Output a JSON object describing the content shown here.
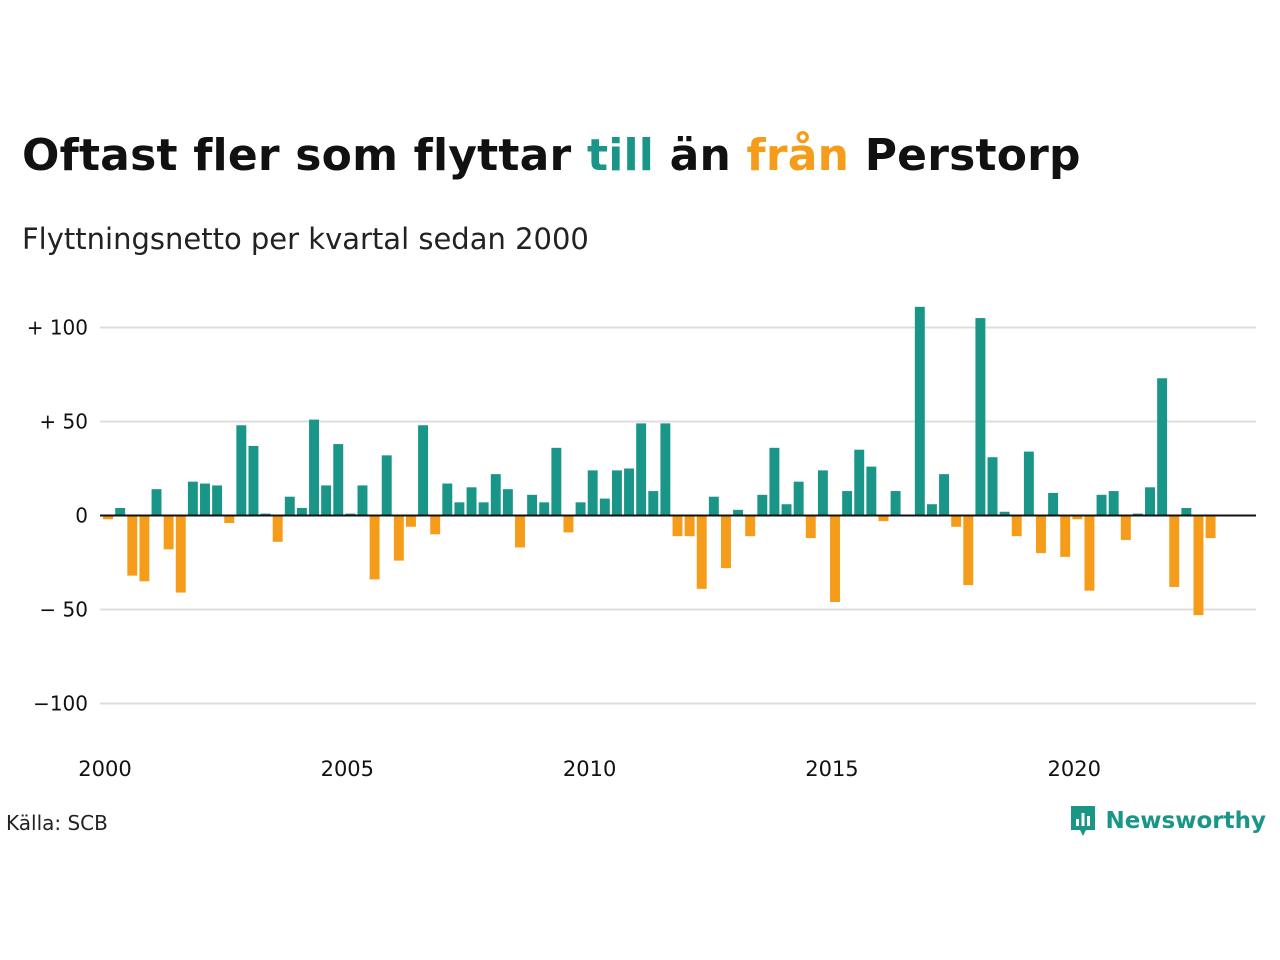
{
  "title": {
    "part1": "Oftast fler som flyttar ",
    "word_in": "till",
    "part2": " än ",
    "word_out": "från",
    "part3": " Perstorp"
  },
  "subtitle": "Flyttningsnetto per kvartal sedan 2000",
  "source": "Källa: SCB",
  "brand": {
    "name": "Newsworthy",
    "icon": "newsworthy-logo-icon"
  },
  "colors": {
    "positive": "#1a9688",
    "negative": "#f59c1a",
    "grid": "#dddddd",
    "axis": "#111111"
  },
  "chart_data": {
    "type": "bar",
    "title": "Oftast fler som flyttar till än från Perstorp",
    "subtitle": "Flyttningsnetto per kvartal sedan 2000",
    "x_start": 2000,
    "periods_per_year": 4,
    "xlim": [
      2000,
      2023.75
    ],
    "ylim": [
      -120,
      115
    ],
    "yticks": [
      100,
      50,
      0,
      -50,
      -100
    ],
    "ytick_labels": [
      "+ 100",
      "+  50",
      "0",
      "− 50",
      "−100"
    ],
    "xticks": [
      2000,
      2005,
      2010,
      2015,
      2020
    ],
    "xtick_labels": [
      "2000",
      "2005",
      "2010",
      "2015",
      "2020"
    ],
    "grid": true,
    "values": [
      -2,
      4,
      -32,
      -35,
      14,
      -18,
      -41,
      18,
      17,
      16,
      -4,
      48,
      37,
      1,
      -14,
      10,
      4,
      51,
      16,
      38,
      1,
      16,
      -34,
      32,
      -24,
      -6,
      48,
      -10,
      17,
      7,
      15,
      7,
      22,
      14,
      -17,
      11,
      7,
      36,
      -9,
      7,
      24,
      9,
      24,
      25,
      49,
      13,
      49,
      -11,
      -11,
      -39,
      10,
      -28,
      3,
      -11,
      11,
      36,
      6,
      18,
      -12,
      24,
      -46,
      13,
      35,
      26,
      -3,
      13,
      0,
      111,
      6,
      22,
      -6,
      -37,
      105,
      31,
      2,
      -11,
      34,
      -20,
      12,
      -22,
      -2,
      -40,
      11,
      13,
      -13,
      1,
      15,
      73,
      -38,
      4,
      -53,
      -12
    ]
  }
}
